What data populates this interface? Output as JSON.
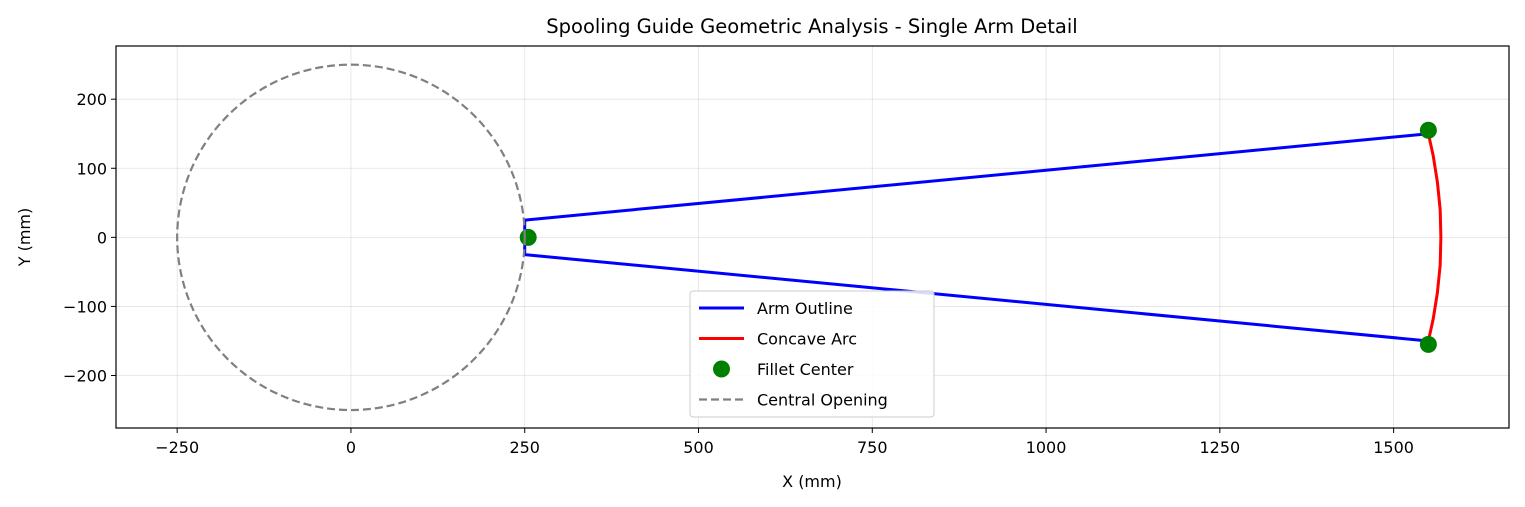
{
  "chart_data": {
    "type": "line",
    "title": "Spooling Guide Geometric Analysis - Single Arm Detail",
    "xlabel": "X (mm)",
    "ylabel": "Y (mm)",
    "xlim": [
      -338,
      1666
    ],
    "ylim": [
      -276,
      277
    ],
    "xticks": [
      {
        "value": -250,
        "label": "−250"
      },
      {
        "value": 0,
        "label": "0"
      },
      {
        "value": 250,
        "label": "250"
      },
      {
        "value": 500,
        "label": "500"
      },
      {
        "value": 750,
        "label": "750"
      },
      {
        "value": 1000,
        "label": "1000"
      },
      {
        "value": 1250,
        "label": "1250"
      },
      {
        "value": 1500,
        "label": "1500"
      }
    ],
    "yticks": [
      {
        "value": -200,
        "label": "−200"
      },
      {
        "value": -100,
        "label": "−100"
      },
      {
        "value": 0,
        "label": "0"
      },
      {
        "value": 100,
        "label": "100"
      },
      {
        "value": 200,
        "label": "200"
      }
    ],
    "grid": true,
    "legend_position": "lower-center",
    "series": [
      {
        "name": "Arm Outline",
        "kind": "line",
        "color": "#0000ff",
        "points": [
          [
            1550,
            -150
          ],
          [
            250,
            -25
          ],
          [
            250,
            25
          ],
          [
            1550,
            150
          ]
        ]
      },
      {
        "name": "Concave Arc",
        "kind": "arc",
        "color": "#ff0000",
        "points": [
          [
            1550,
            150
          ],
          [
            1557,
            118
          ],
          [
            1563,
            80
          ],
          [
            1567,
            40
          ],
          [
            1568,
            0
          ],
          [
            1567,
            -40
          ],
          [
            1563,
            -80
          ],
          [
            1557,
            -118
          ],
          [
            1550,
            -150
          ]
        ]
      },
      {
        "name": "Fillet Center",
        "kind": "scatter",
        "color": "#008000",
        "points": [
          [
            255,
            0
          ],
          [
            1550,
            155
          ],
          [
            1550,
            -155
          ]
        ]
      },
      {
        "name": "Central Opening",
        "kind": "circle",
        "color": "#808080",
        "center": [
          0,
          0
        ],
        "radius": 250
      }
    ]
  }
}
